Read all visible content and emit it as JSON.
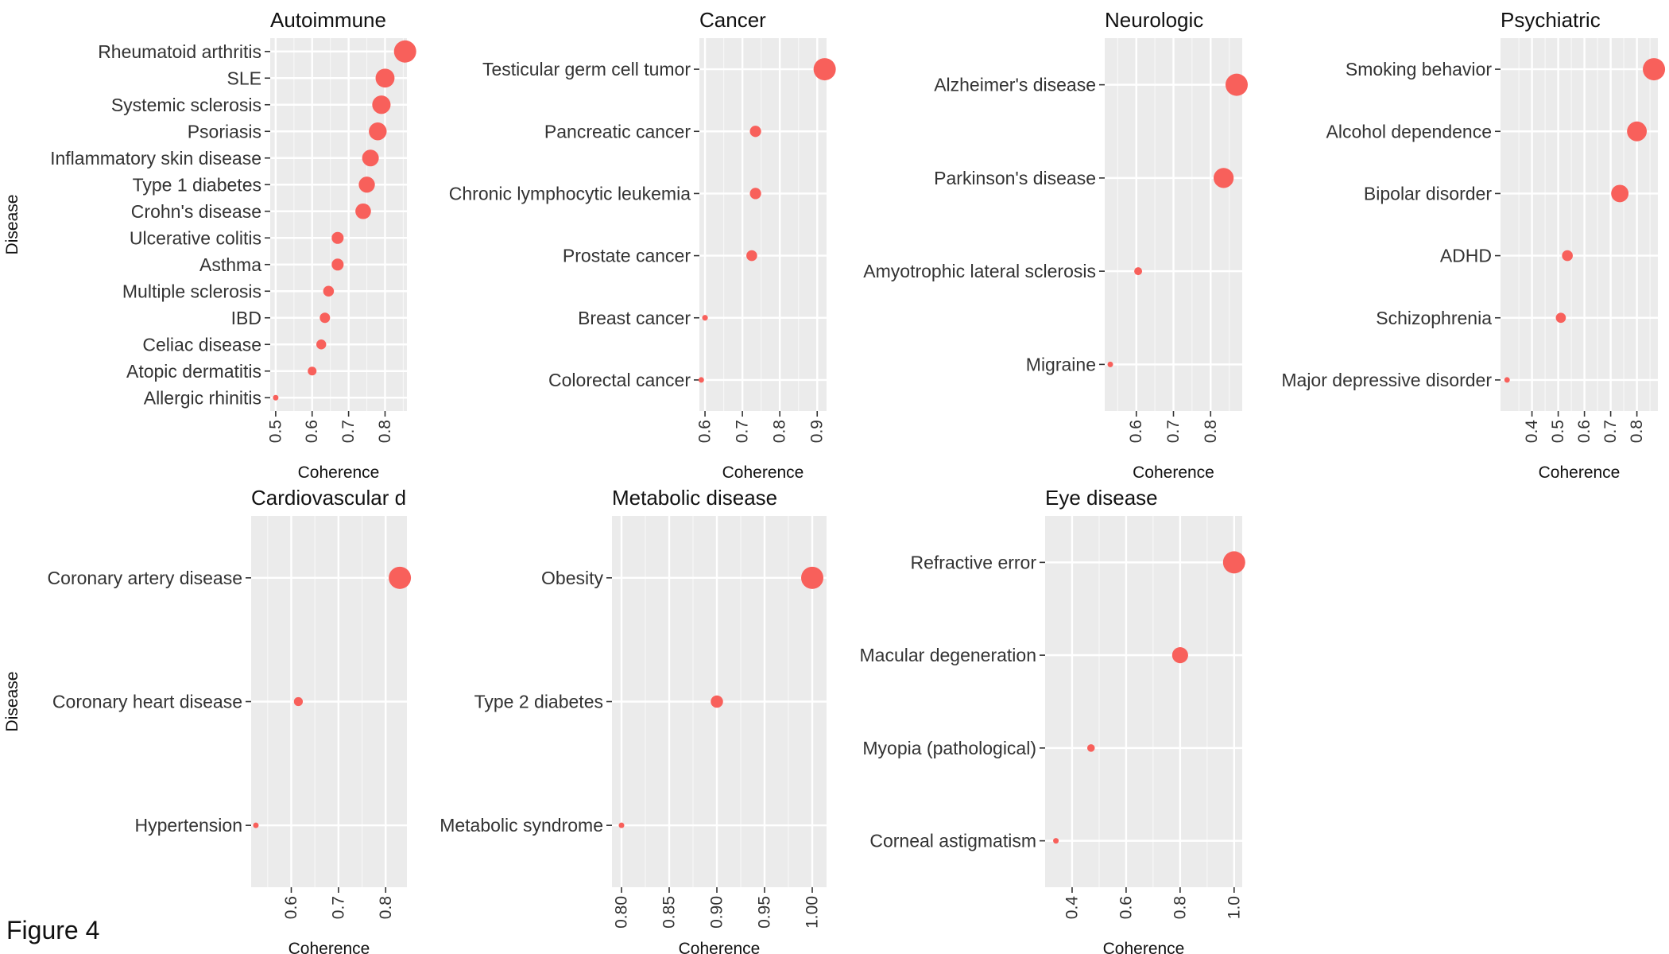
{
  "figure_label": "Figure 4",
  "x_axis_title": "Coherence",
  "y_axis_title": "Disease",
  "colors": {
    "point": "#f8605b",
    "panel": "#ebebeb",
    "grid": "#ffffff",
    "tick": "#333333"
  },
  "chart_data": [
    {
      "type": "scatter",
      "title": "Autoimmune",
      "xlabel": "Coherence",
      "ylabel": "Disease",
      "xlim": [
        0.485,
        0.86
      ],
      "xticks": [
        0.5,
        0.6,
        0.7,
        0.8
      ],
      "xtick_labels": [
        "0.5",
        "0.6",
        "0.7",
        "0.8"
      ],
      "categories": [
        "Rheumatoid arthritis",
        "SLE",
        "Systemic sclerosis",
        "Psoriasis",
        "Inflammatory skin disease",
        "Type 1 diabetes",
        "Crohn's disease",
        "Ulcerative colitis",
        "Asthma",
        "Multiple sclerosis",
        "IBD",
        "Celiac disease",
        "Atopic dermatitis",
        "Allergic rhinitis"
      ],
      "values": [
        0.855,
        0.8,
        0.79,
        0.78,
        0.76,
        0.75,
        0.74,
        0.67,
        0.67,
        0.645,
        0.635,
        0.625,
        0.6,
        0.5
      ]
    },
    {
      "type": "scatter",
      "title": "Cancer",
      "xlabel": "Coherence",
      "ylabel": "",
      "xlim": [
        0.585,
        0.925
      ],
      "xticks": [
        0.6,
        0.7,
        0.8,
        0.9
      ],
      "xtick_labels": [
        "0.6",
        "0.7",
        "0.8",
        "0.9"
      ],
      "categories": [
        "Testicular germ cell tumor",
        "Pancreatic cancer",
        "Chronic lymphocytic leukemia",
        "Prostate cancer",
        "Breast cancer",
        "Colorectal cancer"
      ],
      "values": [
        0.92,
        0.735,
        0.735,
        0.725,
        0.6,
        0.59
      ]
    },
    {
      "type": "scatter",
      "title": "Neurologic",
      "xlabel": "Coherence",
      "ylabel": "",
      "xlim": [
        0.515,
        0.885
      ],
      "xticks": [
        0.6,
        0.7,
        0.8
      ],
      "xtick_labels": [
        "0.6",
        "0.7",
        "0.8"
      ],
      "categories": [
        "Alzheimer's disease",
        "Parkinson's disease",
        "Amyotrophic lateral sclerosis",
        "Migraine"
      ],
      "values": [
        0.87,
        0.835,
        0.605,
        0.53
      ]
    },
    {
      "type": "scatter",
      "title": "Psychiatric",
      "xlabel": "Coherence",
      "ylabel": "",
      "xlim": [
        0.28,
        0.88
      ],
      "xticks": [
        0.4,
        0.5,
        0.6,
        0.7,
        0.8
      ],
      "xtick_labels": [
        "0.4",
        "0.5",
        "0.6",
        "0.7",
        "0.8"
      ],
      "categories": [
        "Smoking behavior",
        "Alcohol dependence",
        "Bipolar disorder",
        "ADHD",
        "Schizophrenia",
        "Major depressive disorder"
      ],
      "values": [
        0.865,
        0.8,
        0.735,
        0.535,
        0.51,
        0.305
      ]
    },
    {
      "type": "scatter",
      "title": "Cardiovascular di",
      "xlabel": "Coherence",
      "ylabel": "Disease",
      "xlim": [
        0.515,
        0.845
      ],
      "xticks": [
        0.6,
        0.7,
        0.8
      ],
      "xtick_labels": [
        "0.6",
        "0.7",
        "0.8"
      ],
      "categories": [
        "Coronary artery disease",
        "Coronary heart disease",
        "Hypertension"
      ],
      "values": [
        0.83,
        0.615,
        0.525
      ]
    },
    {
      "type": "scatter",
      "title": "Metabolic disease",
      "xlabel": "Coherence",
      "ylabel": "",
      "xlim": [
        0.79,
        1.015
      ],
      "xticks": [
        0.8,
        0.85,
        0.9,
        0.95,
        1.0
      ],
      "xtick_labels": [
        "0.80",
        "0.85",
        "0.90",
        "0.95",
        "1.00"
      ],
      "categories": [
        "Obesity",
        "Type 2 diabetes",
        "Metabolic syndrome"
      ],
      "values": [
        1.0,
        0.9,
        0.8
      ]
    },
    {
      "type": "scatter",
      "title": "Eye disease",
      "xlabel": "Coherence",
      "ylabel": "",
      "xlim": [
        0.3,
        1.03
      ],
      "xticks": [
        0.4,
        0.6,
        0.8,
        1.0
      ],
      "xtick_labels": [
        "0.4",
        "0.6",
        "0.8",
        "1.0"
      ],
      "categories": [
        "Refractive error",
        "Macular degeneration",
        "Myopia (pathological)",
        "Corneal astigmatism"
      ],
      "values": [
        1.0,
        0.8,
        0.47,
        0.34
      ]
    }
  ]
}
